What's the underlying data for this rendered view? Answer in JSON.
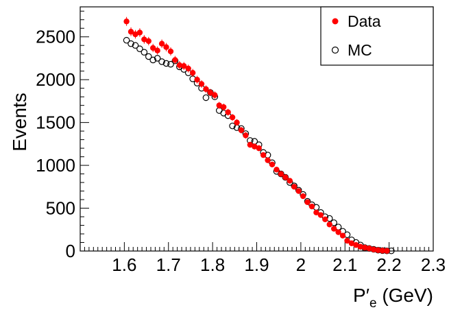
{
  "chart_data": {
    "type": "scatter",
    "title": "",
    "ylabel": "Events",
    "xlabel": {
      "main": "P′",
      "sub": "e",
      "unit": "(GeV)"
    },
    "xlim": [
      1.5,
      2.3
    ],
    "ylim": [
      0,
      2850
    ],
    "xticks": [
      1.6,
      1.7,
      1.8,
      1.9,
      2,
      2.1,
      2.2,
      2.3
    ],
    "yticks": [
      0,
      500,
      1000,
      1500,
      2000,
      2500
    ],
    "grid": false,
    "legend_position": "top-right",
    "series": [
      {
        "name": "Data",
        "marker": "filled-circle",
        "color": "#ff0000",
        "error_bars": true,
        "x": [
          1.605,
          1.615,
          1.625,
          1.635,
          1.645,
          1.655,
          1.665,
          1.675,
          1.685,
          1.695,
          1.705,
          1.715,
          1.725,
          1.735,
          1.745,
          1.755,
          1.765,
          1.775,
          1.785,
          1.795,
          1.805,
          1.815,
          1.825,
          1.835,
          1.845,
          1.855,
          1.865,
          1.875,
          1.885,
          1.895,
          1.905,
          1.915,
          1.925,
          1.935,
          1.945,
          1.955,
          1.965,
          1.975,
          1.985,
          1.995,
          2.005,
          2.015,
          2.025,
          2.035,
          2.045,
          2.055,
          2.065,
          2.075,
          2.085,
          2.095,
          2.105,
          2.115,
          2.125,
          2.135,
          2.145,
          2.155,
          2.165,
          2.175,
          2.185,
          2.195
        ],
        "y": [
          2680,
          2560,
          2530,
          2550,
          2470,
          2450,
          2370,
          2340,
          2420,
          2380,
          2330,
          2230,
          2170,
          2160,
          2130,
          2080,
          2000,
          1950,
          1890,
          1850,
          1820,
          1700,
          1680,
          1620,
          1560,
          1500,
          1410,
          1350,
          1240,
          1220,
          1200,
          1120,
          1060,
          1010,
          950,
          900,
          860,
          820,
          750,
          700,
          640,
          570,
          520,
          450,
          420,
          370,
          310,
          260,
          220,
          180,
          120,
          90,
          70,
          50,
          40,
          30,
          18,
          10,
          5,
          2
        ],
        "yerr": [
          52,
          51,
          50,
          50,
          50,
          49,
          49,
          48,
          49,
          49,
          48,
          47,
          47,
          46,
          46,
          46,
          45,
          44,
          43,
          43,
          43,
          41,
          41,
          40,
          39,
          39,
          38,
          37,
          35,
          35,
          35,
          33,
          33,
          32,
          31,
          30,
          29,
          29,
          27,
          26,
          25,
          24,
          23,
          21,
          20,
          19,
          18,
          16,
          15,
          13,
          11,
          10,
          8,
          7,
          6,
          5,
          4,
          3,
          2,
          1
        ]
      },
      {
        "name": "MC",
        "marker": "open-circle",
        "color": "#000000",
        "x": [
          1.605,
          1.615,
          1.625,
          1.635,
          1.645,
          1.655,
          1.665,
          1.675,
          1.685,
          1.695,
          1.705,
          1.715,
          1.725,
          1.735,
          1.745,
          1.755,
          1.765,
          1.775,
          1.785,
          1.795,
          1.805,
          1.815,
          1.825,
          1.835,
          1.845,
          1.855,
          1.865,
          1.875,
          1.885,
          1.895,
          1.905,
          1.915,
          1.925,
          1.935,
          1.945,
          1.955,
          1.965,
          1.975,
          1.985,
          1.995,
          2.005,
          2.015,
          2.025,
          2.035,
          2.045,
          2.055,
          2.065,
          2.075,
          2.085,
          2.095,
          2.105,
          2.115,
          2.125,
          2.135,
          2.145,
          2.155,
          2.165,
          2.175,
          2.185,
          2.195,
          2.205
        ],
        "y": [
          2460,
          2420,
          2400,
          2360,
          2320,
          2270,
          2230,
          2250,
          2210,
          2190,
          2180,
          2220,
          2150,
          2120,
          2080,
          2010,
          1960,
          1900,
          1790,
          1850,
          1800,
          1640,
          1610,
          1580,
          1460,
          1440,
          1430,
          1370,
          1290,
          1280,
          1240,
          1150,
          1120,
          1030,
          930,
          900,
          860,
          800,
          760,
          710,
          660,
          580,
          540,
          510,
          450,
          400,
          380,
          330,
          280,
          230,
          190,
          130,
          100,
          70,
          40,
          30,
          20,
          10,
          5,
          2,
          2
        ]
      }
    ]
  }
}
